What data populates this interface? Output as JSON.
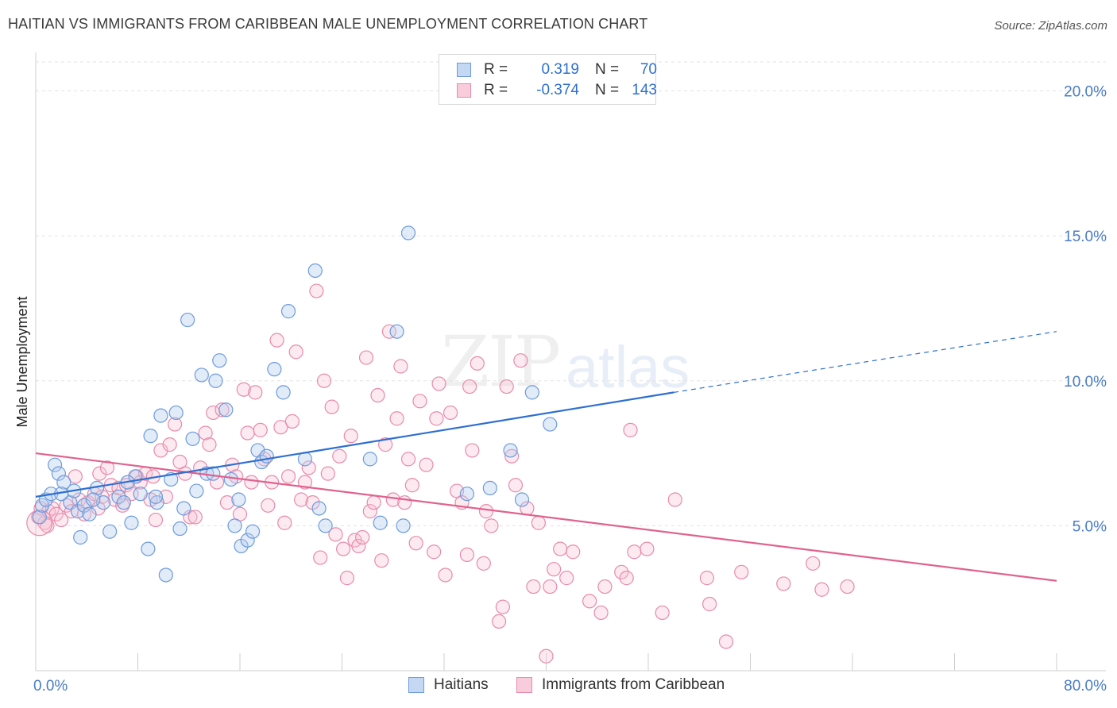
{
  "header": {
    "title": "HAITIAN VS IMMIGRANTS FROM CARIBBEAN MALE UNEMPLOYMENT CORRELATION CHART",
    "source": "Source: ZipAtlas.com"
  },
  "legend": {
    "rows": [
      {
        "r_label": "R =",
        "r_value": "0.319",
        "n_label": "N =",
        "n_value": "70"
      },
      {
        "r_label": "R =",
        "r_value": "-0.374",
        "n_label": "N =",
        "n_value": "143"
      }
    ]
  },
  "watermark": {
    "zip": "ZIP",
    "atlas": "atlas"
  },
  "colors": {
    "blue_fill": "#b7cdee",
    "blue_stroke": "#6d9bdc",
    "blue_line": "#2e6fd1",
    "pink_fill": "#f6c3d3",
    "pink_stroke": "#e88aab",
    "pink_line": "#e0628f",
    "tick_text": "#4a7cc6",
    "grid": "#e3e3e3"
  },
  "chart_data": {
    "type": "scatter",
    "title": "HAITIAN VS IMMIGRANTS FROM CARIBBEAN MALE UNEMPLOYMENT CORRELATION CHART",
    "xlabel": "",
    "ylabel": "Male Unemployment",
    "xlim": [
      0,
      80
    ],
    "ylim": [
      0,
      20
    ],
    "x_tick_labels": [
      "0.0%",
      "80.0%"
    ],
    "y_tick_labels": [
      "5.0%",
      "10.0%",
      "15.0%",
      "20.0%"
    ],
    "y_ticks": [
      5,
      10,
      15,
      20
    ],
    "grid": true,
    "legend_position": "top-center",
    "series": [
      {
        "name": "Haitians",
        "r": 0.319,
        "n": 70,
        "trend": {
          "x0": 0,
          "y0": 6.0,
          "x1": 50,
          "y1": 9.6,
          "dash_to_x": 80,
          "dash_to_y": 11.7
        },
        "points": [
          [
            0.3,
            5.3
          ],
          [
            0.5,
            5.7
          ],
          [
            0.8,
            5.9
          ],
          [
            1.2,
            6.1
          ],
          [
            1.5,
            7.1
          ],
          [
            1.8,
            6.8
          ],
          [
            2.2,
            6.5
          ],
          [
            2.7,
            5.8
          ],
          [
            3.0,
            6.2
          ],
          [
            3.3,
            5.5
          ],
          [
            3.5,
            4.6
          ],
          [
            3.8,
            5.7
          ],
          [
            4.2,
            5.4
          ],
          [
            4.8,
            6.3
          ],
          [
            5.3,
            5.8
          ],
          [
            5.8,
            4.8
          ],
          [
            6.5,
            6.0
          ],
          [
            6.9,
            5.8
          ],
          [
            7.5,
            5.1
          ],
          [
            7.8,
            6.7
          ],
          [
            8.2,
            6.1
          ],
          [
            8.8,
            4.2
          ],
          [
            9.0,
            8.1
          ],
          [
            9.5,
            5.8
          ],
          [
            9.8,
            8.8
          ],
          [
            10.2,
            3.3
          ],
          [
            10.6,
            6.6
          ],
          [
            11.0,
            8.9
          ],
          [
            11.3,
            4.9
          ],
          [
            11.6,
            5.6
          ],
          [
            11.9,
            12.1
          ],
          [
            12.3,
            8.0
          ],
          [
            12.6,
            6.2
          ],
          [
            13.0,
            10.2
          ],
          [
            13.4,
            6.8
          ],
          [
            13.9,
            6.8
          ],
          [
            14.1,
            10.0
          ],
          [
            14.4,
            10.7
          ],
          [
            14.9,
            9.0
          ],
          [
            15.3,
            6.6
          ],
          [
            15.6,
            5.0
          ],
          [
            15.9,
            5.9
          ],
          [
            16.1,
            4.3
          ],
          [
            16.6,
            4.5
          ],
          [
            17.0,
            4.8
          ],
          [
            17.4,
            7.6
          ],
          [
            17.7,
            7.2
          ],
          [
            18.1,
            7.4
          ],
          [
            18.7,
            10.4
          ],
          [
            19.4,
            9.6
          ],
          [
            19.8,
            12.4
          ],
          [
            21.1,
            7.3
          ],
          [
            21.9,
            13.8
          ],
          [
            22.2,
            5.6
          ],
          [
            22.7,
            5.0
          ],
          [
            26.2,
            7.3
          ],
          [
            27.0,
            5.1
          ],
          [
            28.3,
            11.7
          ],
          [
            28.8,
            5.0
          ],
          [
            29.2,
            15.1
          ],
          [
            33.8,
            6.1
          ],
          [
            35.6,
            6.3
          ],
          [
            37.2,
            7.6
          ],
          [
            38.1,
            5.9
          ],
          [
            38.9,
            9.6
          ],
          [
            40.3,
            8.5
          ],
          [
            7.2,
            6.5
          ],
          [
            9.4,
            6.0
          ],
          [
            2.0,
            6.1
          ],
          [
            4.5,
            5.9
          ]
        ]
      },
      {
        "name": "Immigrants from Caribbean",
        "r": -0.374,
        "n": 143,
        "trend": {
          "x0": 0,
          "y0": 7.5,
          "x1": 80,
          "y1": 3.1
        },
        "points": [
          [
            0.2,
            5.3
          ],
          [
            0.4,
            5.6
          ],
          [
            0.7,
            5.1
          ],
          [
            1.0,
            5.5
          ],
          [
            1.3,
            5.6
          ],
          [
            1.6,
            5.4
          ],
          [
            2.0,
            5.2
          ],
          [
            2.4,
            5.7
          ],
          [
            2.8,
            5.5
          ],
          [
            3.1,
            6.7
          ],
          [
            3.4,
            5.9
          ],
          [
            3.8,
            5.4
          ],
          [
            4.1,
            5.8
          ],
          [
            4.6,
            6.1
          ],
          [
            5.0,
            6.8
          ],
          [
            5.2,
            6.0
          ],
          [
            5.6,
            7.0
          ],
          [
            5.9,
            6.4
          ],
          [
            6.2,
            5.9
          ],
          [
            6.5,
            6.3
          ],
          [
            6.8,
            5.7
          ],
          [
            7.1,
            6.4
          ],
          [
            7.5,
            6.1
          ],
          [
            7.9,
            6.7
          ],
          [
            8.2,
            6.5
          ],
          [
            8.6,
            6.8
          ],
          [
            9.0,
            5.9
          ],
          [
            9.4,
            5.2
          ],
          [
            9.8,
            7.6
          ],
          [
            10.2,
            6.0
          ],
          [
            10.5,
            7.8
          ],
          [
            10.9,
            8.5
          ],
          [
            11.3,
            7.2
          ],
          [
            11.7,
            6.8
          ],
          [
            12.1,
            5.3
          ],
          [
            12.5,
            5.3
          ],
          [
            12.9,
            7.0
          ],
          [
            13.3,
            8.2
          ],
          [
            13.6,
            7.8
          ],
          [
            13.9,
            8.9
          ],
          [
            14.2,
            6.5
          ],
          [
            14.6,
            9.0
          ],
          [
            15.0,
            5.8
          ],
          [
            15.4,
            7.1
          ],
          [
            15.7,
            6.7
          ],
          [
            16.0,
            5.4
          ],
          [
            16.3,
            9.7
          ],
          [
            16.6,
            8.2
          ],
          [
            16.9,
            6.5
          ],
          [
            17.2,
            9.6
          ],
          [
            17.6,
            8.3
          ],
          [
            17.9,
            7.3
          ],
          [
            18.2,
            5.7
          ],
          [
            18.5,
            6.5
          ],
          [
            18.9,
            11.4
          ],
          [
            19.2,
            8.4
          ],
          [
            19.5,
            5.1
          ],
          [
            19.8,
            6.7
          ],
          [
            20.1,
            8.6
          ],
          [
            20.4,
            11.0
          ],
          [
            20.8,
            5.9
          ],
          [
            21.1,
            6.5
          ],
          [
            21.4,
            7.0
          ],
          [
            21.7,
            5.8
          ],
          [
            22.0,
            13.1
          ],
          [
            22.3,
            3.9
          ],
          [
            22.6,
            10.0
          ],
          [
            22.9,
            6.8
          ],
          [
            23.2,
            9.1
          ],
          [
            23.5,
            4.7
          ],
          [
            23.8,
            7.4
          ],
          [
            24.1,
            4.2
          ],
          [
            24.4,
            3.2
          ],
          [
            24.7,
            8.1
          ],
          [
            25.0,
            4.5
          ],
          [
            25.3,
            4.3
          ],
          [
            25.6,
            4.6
          ],
          [
            25.9,
            10.8
          ],
          [
            26.2,
            5.5
          ],
          [
            26.5,
            5.8
          ],
          [
            26.8,
            9.5
          ],
          [
            27.1,
            3.8
          ],
          [
            27.4,
            7.8
          ],
          [
            27.7,
            11.7
          ],
          [
            28.0,
            5.9
          ],
          [
            28.3,
            8.7
          ],
          [
            28.6,
            10.5
          ],
          [
            28.9,
            5.8
          ],
          [
            29.2,
            7.3
          ],
          [
            29.5,
            6.4
          ],
          [
            29.8,
            4.4
          ],
          [
            30.1,
            9.3
          ],
          [
            30.6,
            7.1
          ],
          [
            31.2,
            4.1
          ],
          [
            31.4,
            8.7
          ],
          [
            31.6,
            9.9
          ],
          [
            32.1,
            3.3
          ],
          [
            32.5,
            8.9
          ],
          [
            33.0,
            6.2
          ],
          [
            33.4,
            5.8
          ],
          [
            33.8,
            4.0
          ],
          [
            34.0,
            9.8
          ],
          [
            34.2,
            7.6
          ],
          [
            34.6,
            10.6
          ],
          [
            35.1,
            3.7
          ],
          [
            35.3,
            5.5
          ],
          [
            35.7,
            5.0
          ],
          [
            36.3,
            1.7
          ],
          [
            36.6,
            2.2
          ],
          [
            36.9,
            9.8
          ],
          [
            37.3,
            7.4
          ],
          [
            37.6,
            6.4
          ],
          [
            38.0,
            10.7
          ],
          [
            38.5,
            5.6
          ],
          [
            39.0,
            2.9
          ],
          [
            39.4,
            5.1
          ],
          [
            40.0,
            0.5
          ],
          [
            40.3,
            2.9
          ],
          [
            40.6,
            3.5
          ],
          [
            41.1,
            4.2
          ],
          [
            41.6,
            3.2
          ],
          [
            42.1,
            4.1
          ],
          [
            43.4,
            2.4
          ],
          [
            44.3,
            2.0
          ],
          [
            44.6,
            2.9
          ],
          [
            45.9,
            3.4
          ],
          [
            46.3,
            3.2
          ],
          [
            46.6,
            8.3
          ],
          [
            46.9,
            4.1
          ],
          [
            47.9,
            4.2
          ],
          [
            49.1,
            2.0
          ],
          [
            50.1,
            5.9
          ],
          [
            52.6,
            3.2
          ],
          [
            52.8,
            2.3
          ],
          [
            54.1,
            1.0
          ],
          [
            55.3,
            3.4
          ],
          [
            58.6,
            3.0
          ],
          [
            60.9,
            3.7
          ],
          [
            61.6,
            2.8
          ],
          [
            63.6,
            2.9
          ],
          [
            4.9,
            5.6
          ],
          [
            9.2,
            6.7
          ],
          [
            0.9,
            5.0
          ]
        ]
      }
    ]
  },
  "bottom_legend": [
    "Haitians",
    "Immigrants from Caribbean"
  ]
}
